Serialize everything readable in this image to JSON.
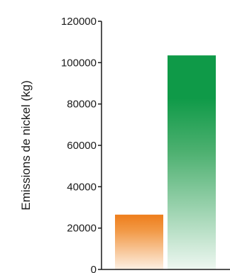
{
  "chart_data": {
    "type": "bar",
    "title": "",
    "xlabel": "",
    "ylabel": "Emissions de nickel (kg)",
    "ylim": [
      0,
      120000
    ],
    "yticks": [
      0,
      20000,
      40000,
      60000,
      80000,
      100000,
      120000
    ],
    "grid": false,
    "categories": [
      "",
      ""
    ],
    "values": [
      26500,
      103500
    ],
    "colors": [
      "#ee7d1a",
      "#0f9a48"
    ]
  }
}
